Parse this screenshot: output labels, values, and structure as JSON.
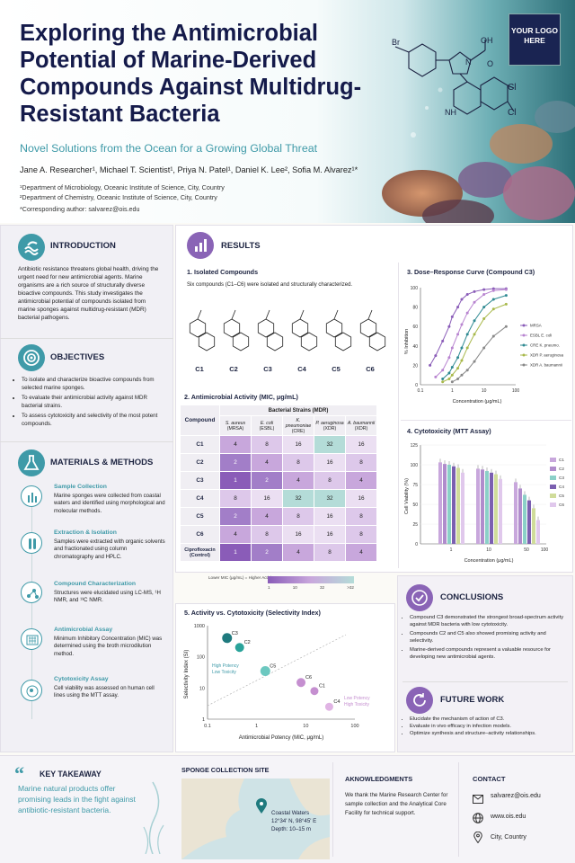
{
  "header": {
    "title": "Exploring the Antimicrobial Potential of Marine-Derived Compounds Against Multidrug-Resistant Bacteria",
    "subtitle": "Novel Solutions from the Ocean for a Growing Global Threat",
    "authors": "Jane A. Researcher¹, Michael T. Scientist¹, Priya N. Patel¹, Daniel K. Lee², Sofia M. Alvarez¹*",
    "affil1": "¹Department of Microbiology, Oceanic Institute of Science, City, Country",
    "affil2": "²Department of Chemistry, Oceanic Institute of Science, City, Country",
    "corr": "*Corresponding author: salvarez@ois.edu",
    "logo": "YOUR LOGO HERE",
    "mol_labels": [
      "Br",
      "OH",
      "N",
      "O",
      "Cl",
      "Cl",
      "NH"
    ]
  },
  "intro": {
    "title": "INTRODUCTION",
    "text": "Antibiotic resistance threatens global health, driving the urgent need for new antimicrobial agents. Marine organisms are a rich source of structurally diverse bioactive compounds. This study investigates the antimicrobial potential of compounds isolated from marine sponges against multidrug-resistant (MDR) bacterial pathogens."
  },
  "objectives": {
    "title": "OBJECTIVES",
    "items": [
      "To isolate and characterize bioactive compounds from selected marine sponges.",
      "To evaluate their antimicrobial activity against MDR bacterial strains.",
      "To assess cytotoxicity and selectivity of the most potent compounds."
    ]
  },
  "methods": {
    "title": "MATERIALS & METHODS",
    "steps": [
      {
        "title": "Sample Collection",
        "text": "Marine sponges were collected from coastal waters and identified using morphological and molecular methods."
      },
      {
        "title": "Extraction & Isolation",
        "text": "Samples were extracted with organic solvents and fractionated using column chromatography and HPLC."
      },
      {
        "title": "Compound Characterization",
        "text": "Structures were elucidated using LC-MS, ¹H NMR, and ¹³C NMR."
      },
      {
        "title": "Antimicrobial Assay",
        "text": "Minimum Inhibitory Concentration (MIC) was determined using the broth microdilution method."
      },
      {
        "title": "Cytotoxicity Assay",
        "text": "Cell viability was assessed on human cell lines using the MTT assay."
      }
    ]
  },
  "results": {
    "title": "RESULTS",
    "s1_title": "1. Isolated Compounds",
    "s1_text": "Six compounds (C1–C6) were isolated and structurally characterized.",
    "compounds": [
      "C1",
      "C2",
      "C3",
      "C4",
      "C5",
      "C6"
    ],
    "s2_title": "2. Antimicrobial Activity (MIC, μg/mL)",
    "s3_title": "3. Dose–Response Curve (Compound C3)",
    "s4_title": "4. Cytotoxicity (MTT Assay)",
    "s5_title": "5. Activity vs. Cytotoxicity (Selectivity Index)"
  },
  "mic_table": {
    "corner": "Compound",
    "group": "Bacterial Strains (MDR)",
    "strains": [
      [
        "S. aureus",
        "(MRSA)"
      ],
      [
        "E. coli",
        "(ESBL)"
      ],
      [
        "K. pneumoniae",
        "(CRE)"
      ],
      [
        "P. aeruginosa",
        "(XDR)"
      ],
      [
        "A. baumannii",
        "(XDR)"
      ]
    ],
    "rows": [
      {
        "name": "C1",
        "v": [
          4,
          8,
          16,
          32,
          16
        ]
      },
      {
        "name": "C2",
        "v": [
          2,
          4,
          8,
          16,
          8
        ]
      },
      {
        "name": "C3",
        "v": [
          1,
          2,
          4,
          8,
          4
        ]
      },
      {
        "name": "C4",
        "v": [
          8,
          16,
          32,
          32,
          16
        ]
      },
      {
        "name": "C5",
        "v": [
          2,
          4,
          8,
          16,
          8
        ]
      },
      {
        "name": "C6",
        "v": [
          4,
          8,
          16,
          16,
          8
        ]
      },
      {
        "name": "Ciprofloxacin (Control)",
        "v": [
          1,
          2,
          4,
          8,
          4
        ]
      }
    ],
    "legend_low": "Lower MIC (μg/mL) = Higher Activity",
    "legend_ticks": [
      "1",
      "10",
      "32",
      ">32"
    ]
  },
  "chart_data": [
    {
      "type": "line",
      "title": "3. Dose–Response Curve (Compound C3)",
      "xlabel": "Concentration (μg/mL)",
      "ylabel": "% Inhibition",
      "xscale": "log",
      "xlim": [
        0.1,
        100
      ],
      "ylim": [
        0,
        100
      ],
      "x_ticks": [
        "0.1",
        "1",
        "10",
        "100"
      ],
      "y_ticks": [
        "0",
        "20",
        "40",
        "60",
        "80",
        "100"
      ],
      "legend_placement": "right",
      "series": [
        {
          "name": "MRSA",
          "color": "#8a5cb8",
          "x": [
            0.2,
            0.3,
            0.5,
            0.8,
            1,
            1.5,
            2,
            3,
            5,
            10,
            20,
            50
          ],
          "y": [
            20,
            30,
            45,
            60,
            70,
            80,
            88,
            93,
            96,
            98,
            99,
            99
          ]
        },
        {
          "name": "ESBL E. coli",
          "color": "#b884d0",
          "x": [
            0.3,
            0.5,
            0.8,
            1,
            1.5,
            2,
            3,
            5,
            10,
            20,
            50
          ],
          "y": [
            8,
            15,
            28,
            38,
            52,
            62,
            74,
            85,
            93,
            97,
            98
          ]
        },
        {
          "name": "CRE K. pneumo.",
          "color": "#2f8a92",
          "x": [
            0.5,
            0.8,
            1,
            1.5,
            2,
            3,
            5,
            10,
            20,
            50
          ],
          "y": [
            6,
            12,
            18,
            28,
            38,
            52,
            66,
            80,
            88,
            92
          ]
        },
        {
          "name": "XDR P. aeruginosa",
          "color": "#a8b84a",
          "x": [
            0.5,
            0.8,
            1,
            1.5,
            2,
            3,
            5,
            10,
            20,
            50
          ],
          "y": [
            3,
            6,
            10,
            17,
            25,
            38,
            52,
            68,
            78,
            83
          ]
        },
        {
          "name": "XDR A. baumannii",
          "color": "#888888",
          "x": [
            1,
            1.5,
            2,
            3,
            5,
            10,
            20,
            50
          ],
          "y": [
            3,
            6,
            10,
            15,
            24,
            38,
            50,
            60
          ]
        }
      ]
    },
    {
      "type": "bar",
      "title": "4. Cytotoxicity (MTT Assay)",
      "xlabel": "Concentration (μg/mL)",
      "ylabel": "Cell Viability (%)",
      "categories": [
        "1",
        "10",
        "50"
      ],
      "x_ticks": [
        "1",
        "10",
        "50",
        "100"
      ],
      "ylim": [
        0,
        125
      ],
      "y_ticks": [
        "0",
        "25",
        "50",
        "75",
        "100",
        "125"
      ],
      "series": [
        {
          "name": "C1",
          "color": "#c8a7dc",
          "values": [
            103,
            95,
            78
          ]
        },
        {
          "name": "C2",
          "color": "#b08ccc",
          "values": [
            101,
            94,
            70
          ]
        },
        {
          "name": "C3",
          "color": "#8bd0c8",
          "values": [
            100,
            92,
            62
          ]
        },
        {
          "name": "C4",
          "color": "#7b5fb0",
          "values": [
            98,
            90,
            55
          ]
        },
        {
          "name": "C5",
          "color": "#d0dc9a",
          "values": [
            96,
            88,
            45
          ]
        },
        {
          "name": "C6",
          "color": "#e0c8ec",
          "values": [
            90,
            82,
            30
          ]
        }
      ]
    },
    {
      "type": "scatter",
      "title": "5. Activity vs. Cytotoxicity (Selectivity Index)",
      "xlabel": "Antimicrobial Potency (MIC, μg/mL)",
      "ylabel": "Selectivity Index (SI)",
      "xscale": "log",
      "yscale": "log",
      "xlim": [
        0.1,
        100
      ],
      "ylim": [
        1,
        1000
      ],
      "x_ticks": [
        "0.1",
        "1",
        "10",
        "100"
      ],
      "y_ticks": [
        "1",
        "10",
        "100",
        "1000"
      ],
      "points": [
        {
          "name": "C3",
          "x": 0.25,
          "y": 400,
          "color": "#1f7a7e",
          "r": 8
        },
        {
          "name": "C2",
          "x": 0.45,
          "y": 200,
          "color": "#2aa39a",
          "r": 7
        },
        {
          "name": "C5",
          "x": 1.5,
          "y": 35,
          "color": "#6cc8c0",
          "r": 8
        },
        {
          "name": "C6",
          "x": 8,
          "y": 15,
          "color": "#c58fd0",
          "r": 7
        },
        {
          "name": "C1",
          "x": 15,
          "y": 8,
          "color": "#c58fd0",
          "r": 6
        },
        {
          "name": "C4",
          "x": 30,
          "y": 2.5,
          "color": "#e0b4e4",
          "r": 6
        }
      ],
      "annotations": [
        "High Potency Low Toxicity",
        "Low Potency High Toxicity"
      ]
    }
  ],
  "conclusions": {
    "title": "CONCLUSIONS",
    "items": [
      "Compound C3 demonstrated the strongest broad-spectrum activity against MDR bacteria with low cytotoxicity.",
      "Compounds C2 and C5 also showed promising activity and selectivity.",
      "Marine-derived compounds represent a valuable resource for developing new antimicrobial agents."
    ]
  },
  "future": {
    "title": "FUTURE WORK",
    "items": [
      "Elucidate the mechanism of action of C3.",
      "Evaluate in vivo efficacy in infection models.",
      "Optimize synthesis and structure–activity relationships."
    ]
  },
  "takeaway": {
    "title": "KEY TAKEAWAY",
    "text": "Marine natural products offer promising leads in the fight against antibiotic-resistant bacteria."
  },
  "site": {
    "title": "SPONGE COLLECTION SITE",
    "name": "Coastal Waters",
    "coords": "12°34' N, 98°45' E",
    "depth": "Depth: 10–15 m"
  },
  "ack": {
    "title": "AKNOWLEDGMENTS",
    "text": "We thank the Marine Research Center for sample collection and the Analytical Core Facility for technical support."
  },
  "contact": {
    "title": "CONTACT",
    "email": "salvarez@ois.edu",
    "web": "www.ois.edu",
    "loc": "City, Country"
  },
  "colors": {
    "navy": "#141a4a",
    "teal": "#3f9aa8",
    "purple": "#8a64b6"
  }
}
